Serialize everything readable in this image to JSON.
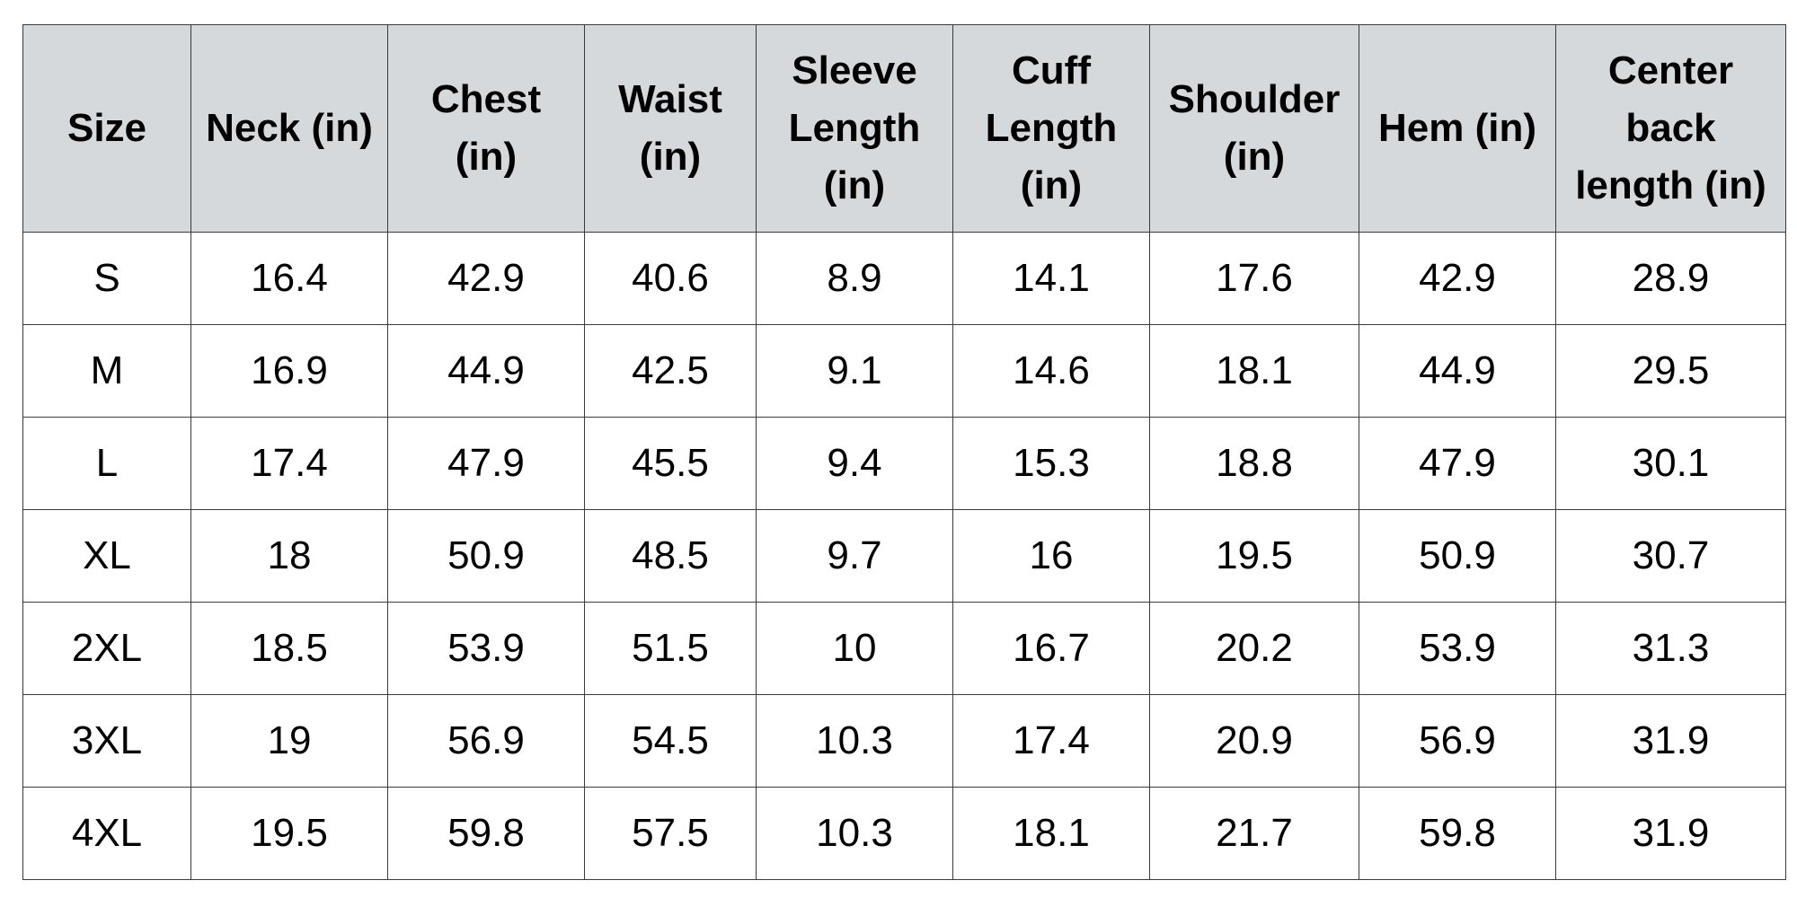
{
  "table": {
    "headers": [
      "Size",
      "Neck (in)",
      "Chest (in)",
      "Waist (in)",
      "Sleeve Length (in)",
      "Cuff Length (in)",
      "Shoulder (in)",
      "Hem (in)",
      "Center back length (in)"
    ],
    "rows": [
      [
        "S",
        "16.4",
        "42.9",
        "40.6",
        "8.9",
        "14.1",
        "17.6",
        "42.9",
        "28.9"
      ],
      [
        "M",
        "16.9",
        "44.9",
        "42.5",
        "9.1",
        "14.6",
        "18.1",
        "44.9",
        "29.5"
      ],
      [
        "L",
        "17.4",
        "47.9",
        "45.5",
        "9.4",
        "15.3",
        "18.8",
        "47.9",
        "30.1"
      ],
      [
        "XL",
        "18",
        "50.9",
        "48.5",
        "9.7",
        "16",
        "19.5",
        "50.9",
        "30.7"
      ],
      [
        "2XL",
        "18.5",
        "53.9",
        "51.5",
        "10",
        "16.7",
        "20.2",
        "53.9",
        "31.3"
      ],
      [
        "3XL",
        "19",
        "56.9",
        "54.5",
        "10.3",
        "17.4",
        "20.9",
        "56.9",
        "31.9"
      ],
      [
        "4XL",
        "19.5",
        "59.8",
        "57.5",
        "10.3",
        "18.1",
        "21.7",
        "59.8",
        "31.9"
      ]
    ]
  },
  "colors": {
    "header_background": "#d6d9dc",
    "border": "#3a3a3a",
    "text": "#000000"
  }
}
